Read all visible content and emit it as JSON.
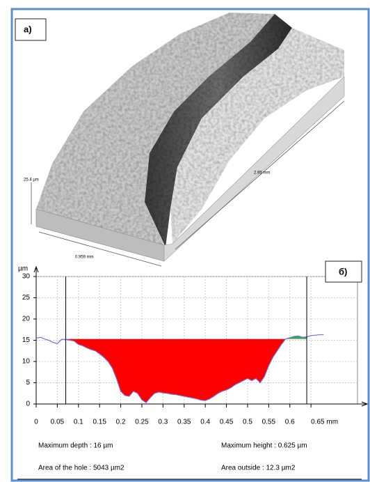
{
  "panel_a": {
    "label": "а)",
    "height_scale": "25.4 µm",
    "length_scale": "2.95 mm",
    "width_scale": "0.959 mm"
  },
  "chart_data": {
    "type": "line",
    "panel_label": "б)",
    "y_label": "µm",
    "x": [
      0,
      0.01,
      0.02,
      0.03,
      0.04,
      0.05,
      0.06,
      0.07,
      0.08,
      0.09,
      0.1,
      0.11,
      0.12,
      0.13,
      0.14,
      0.15,
      0.16,
      0.17,
      0.18,
      0.19,
      0.2,
      0.21,
      0.22,
      0.23,
      0.24,
      0.25,
      0.26,
      0.27,
      0.28,
      0.29,
      0.3,
      0.31,
      0.32,
      0.33,
      0.34,
      0.35,
      0.36,
      0.37,
      0.38,
      0.39,
      0.4,
      0.41,
      0.42,
      0.43,
      0.44,
      0.45,
      0.46,
      0.47,
      0.48,
      0.49,
      0.5,
      0.51,
      0.52,
      0.53,
      0.54,
      0.55,
      0.56,
      0.57,
      0.58,
      0.59,
      0.6,
      0.61,
      0.62,
      0.63,
      0.64,
      0.65,
      0.66,
      0.67,
      0.68
    ],
    "values": [
      15.5,
      15.7,
      15.3,
      15.0,
      14.5,
      14.2,
      15.2,
      15.2,
      15.0,
      14.8,
      14.0,
      13.7,
      13.2,
      12.8,
      12.5,
      11.8,
      11.0,
      10.0,
      8.5,
      6.0,
      3.0,
      2.0,
      1.8,
      3.0,
      2.5,
      1.0,
      0.3,
      1.5,
      2.5,
      2.8,
      2.6,
      2.5,
      2.3,
      2.2,
      2.0,
      1.8,
      1.6,
      1.4,
      1.2,
      0.9,
      0.8,
      1.2,
      1.8,
      2.5,
      3.0,
      3.3,
      3.8,
      4.5,
      5.0,
      5.5,
      6.0,
      5.5,
      6.0,
      5.0,
      6.5,
      9.0,
      11.0,
      12.5,
      14.0,
      15.3,
      15.6,
      15.9,
      16.0,
      15.7,
      15.8,
      16.1,
      16.2,
      16.3,
      16.3
    ],
    "color": "#7070d8",
    "hole_color": "#ff0000",
    "peak_color": "#2eb04a",
    "reference_level": 15.3,
    "cursors": [
      0.07,
      0.64
    ],
    "xlim": [
      0,
      0.76
    ],
    "ylim": [
      0,
      30
    ],
    "xticks": [
      0,
      0.05,
      0.1,
      0.15,
      0.2,
      0.25,
      0.3,
      0.35,
      0.4,
      0.45,
      0.5,
      0.55,
      0.6,
      {
        "value": 0.65,
        "label": "0.65 mm"
      }
    ],
    "yticks": [
      0,
      5,
      10,
      15,
      20,
      25,
      30
    ],
    "grid": true,
    "annotations": [
      "Maximum depth : 16 µm",
      "Maximum height : 0.625 µm",
      "Area of the hole : 5043 µm2",
      "Area outside : 12.3 µm2"
    ]
  }
}
